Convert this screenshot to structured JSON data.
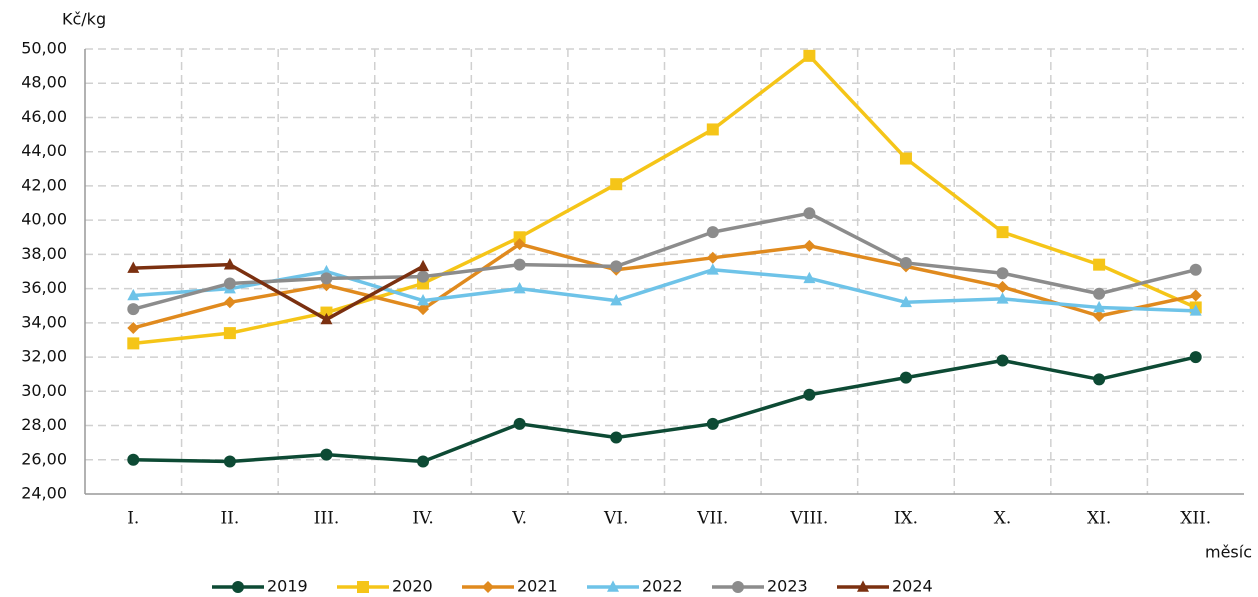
{
  "chart_data": {
    "type": "line",
    "ylabel": "Kč/kg",
    "xlabel": "měsíc",
    "categories": [
      "I.",
      "II.",
      "III.",
      "IV.",
      "V.",
      "VI.",
      "VII.",
      "VIII.",
      "IX.",
      "X.",
      "XI.",
      "XII."
    ],
    "ylim": [
      24,
      50
    ],
    "yticks": [
      {
        "value": 24,
        "label": "24,00"
      },
      {
        "value": 26,
        "label": "26,00"
      },
      {
        "value": 28,
        "label": "28,00"
      },
      {
        "value": 30,
        "label": "30,00"
      },
      {
        "value": 32,
        "label": "32,00"
      },
      {
        "value": 34,
        "label": "34,00"
      },
      {
        "value": 36,
        "label": "36,00"
      },
      {
        "value": 38,
        "label": "38,00"
      },
      {
        "value": 40,
        "label": "40,00"
      },
      {
        "value": 42,
        "label": "42,00"
      },
      {
        "value": 44,
        "label": "44,00"
      },
      {
        "value": 46,
        "label": "46,00"
      },
      {
        "value": 48,
        "label": "48,00"
      },
      {
        "value": 50,
        "label": "50,00"
      }
    ],
    "grid": true,
    "legend": "bottom",
    "series": [
      {
        "name": "2019",
        "color": "#0d4a34",
        "marker": "circle",
        "values": [
          26.0,
          25.9,
          26.3,
          25.9,
          28.1,
          27.3,
          28.1,
          29.8,
          30.8,
          31.8,
          30.7,
          32.0
        ]
      },
      {
        "name": "2020",
        "color": "#f5c518",
        "marker": "square",
        "values": [
          32.8,
          33.4,
          34.6,
          36.3,
          39.0,
          42.1,
          45.3,
          49.6,
          43.6,
          39.3,
          37.4,
          34.9
        ]
      },
      {
        "name": "2021",
        "color": "#e08a1e",
        "marker": "diamond",
        "values": [
          33.7,
          35.2,
          36.2,
          34.8,
          38.6,
          37.1,
          37.8,
          38.5,
          37.3,
          36.1,
          34.4,
          35.6
        ]
      },
      {
        "name": "2022",
        "color": "#6ec3e8",
        "marker": "triangle",
        "values": [
          35.6,
          36.0,
          37.0,
          35.3,
          36.0,
          35.3,
          37.1,
          36.6,
          35.2,
          35.4,
          34.9,
          34.7
        ]
      },
      {
        "name": "2023",
        "color": "#8c8c8c",
        "marker": "circle",
        "values": [
          34.8,
          36.3,
          36.6,
          36.7,
          37.4,
          37.3,
          39.3,
          40.4,
          37.5,
          36.9,
          35.7,
          37.1
        ]
      },
      {
        "name": "2024",
        "color": "#7b3010",
        "marker": "triangle",
        "values": [
          37.2,
          37.4,
          34.2,
          37.3,
          null,
          null,
          null,
          null,
          null,
          null,
          null,
          null
        ]
      }
    ]
  }
}
